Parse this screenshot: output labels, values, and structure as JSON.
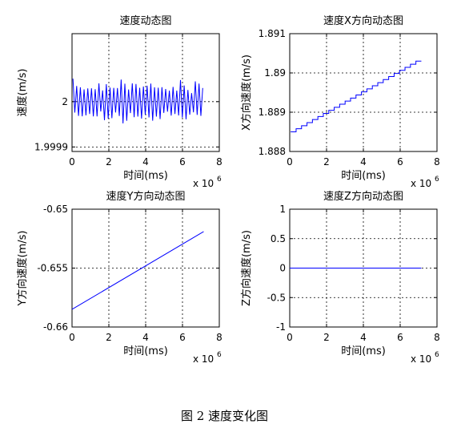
{
  "figure": {
    "caption": "图 2  速度变化图"
  },
  "chart_data": [
    {
      "type": "line",
      "title": "速度动态图",
      "xlabel": "时间(ms)",
      "ylabel": "速度(m/s)",
      "x_exponent_label": "x 10",
      "x_exponent_power": "6",
      "xlim": [
        0,
        8
      ],
      "ylim": [
        1.99989,
        2.00015
      ],
      "xticks": [
        0,
        2,
        4,
        6,
        8
      ],
      "yticks": [
        1.9999,
        2
      ],
      "ytick_labels": [
        "1.9999",
        "2"
      ],
      "grid": true,
      "series": [
        {
          "color": "#0000ff",
          "pattern": "oscillating",
          "x_range": [
            0.05,
            7.1
          ],
          "center": 2.0,
          "amplitude": 5.5e-05
        }
      ]
    },
    {
      "type": "line",
      "title": "速度X方向动态图",
      "xlabel": "时间(ms)",
      "ylabel": "X方向速度(m/s)",
      "x_exponent_label": "x 10",
      "x_exponent_power": "6",
      "xlim": [
        0,
        8
      ],
      "ylim": [
        1.888,
        1.891
      ],
      "xticks": [
        0,
        2,
        4,
        6,
        8
      ],
      "yticks": [
        1.888,
        1.889,
        1.89,
        1.891
      ],
      "ytick_labels": [
        "1.888",
        "1.889",
        "1.89",
        "1.891"
      ],
      "grid": true,
      "series": [
        {
          "color": "#0000ff",
          "pattern": "staircase",
          "x": [
            0.05,
            7.15
          ],
          "y": [
            1.8885,
            1.8903
          ]
        }
      ]
    },
    {
      "type": "line",
      "title": "速度Y方向动态图",
      "xlabel": "时间(ms)",
      "ylabel": "Y方向速度(m/s)",
      "x_exponent_label": "x 10",
      "x_exponent_power": "6",
      "xlim": [
        0,
        8
      ],
      "ylim": [
        -0.66,
        -0.65
      ],
      "xticks": [
        0,
        2,
        4,
        6,
        8
      ],
      "yticks": [
        -0.66,
        -0.655,
        -0.65
      ],
      "ytick_labels": [
        "-0.66",
        "-0.655",
        "-0.65"
      ],
      "grid": true,
      "series": [
        {
          "color": "#0000ff",
          "pattern": "linear",
          "x": [
            0.0,
            7.15
          ],
          "y": [
            -0.6585,
            -0.6519
          ]
        }
      ]
    },
    {
      "type": "line",
      "title": "速度Z方向动态图",
      "xlabel": "时间(ms)",
      "ylabel": "Z方向速度(m/s)",
      "x_exponent_label": "x 10",
      "x_exponent_power": "6",
      "xlim": [
        0,
        8
      ],
      "ylim": [
        -1,
        1
      ],
      "xticks": [
        0,
        2,
        4,
        6,
        8
      ],
      "yticks": [
        -1,
        -0.5,
        0,
        0.5,
        1
      ],
      "ytick_labels": [
        "-1",
        "-0.5",
        "0",
        "0.5",
        "1"
      ],
      "grid": true,
      "series": [
        {
          "color": "#0000ff",
          "pattern": "linear",
          "x": [
            0.0,
            7.15
          ],
          "y": [
            0,
            0
          ]
        }
      ]
    }
  ]
}
